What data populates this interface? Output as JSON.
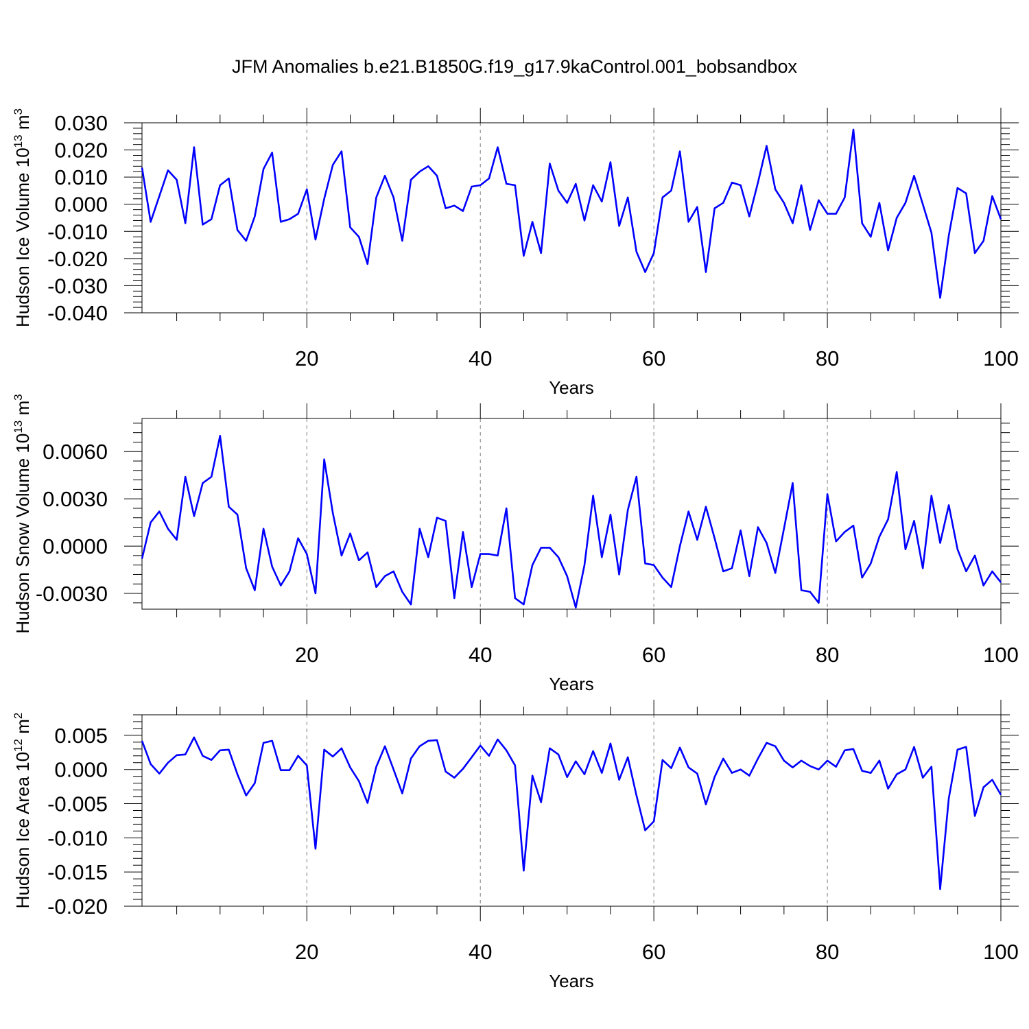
{
  "title": "JFM Anomalies b.e21.B1850G.f19_g17.9kaControl.001_bobsandbox",
  "colors": {
    "line": "#0000ff",
    "axis": "#000000",
    "grid": "#808080"
  },
  "chart_data": [
    {
      "type": "line",
      "ylabel_main": "Hudson Ice Volume 10",
      "ylabel_exp": "13",
      "ylabel_unit": " m",
      "ylabel_unit_exp": "3",
      "xlabel": "Years",
      "xlim": [
        1,
        100
      ],
      "ylim": [
        -0.04,
        0.03
      ],
      "yticks": [
        -0.04,
        -0.03,
        -0.02,
        -0.01,
        0.0,
        0.01,
        0.02,
        0.03
      ],
      "ytick_labels": [
        "-0.040",
        "-0.030",
        "-0.020",
        "-0.010",
        "0.000",
        "0.010",
        "0.020",
        "0.030"
      ],
      "xticks": [
        20,
        40,
        60,
        80,
        100
      ],
      "xtick_labels": [
        "20",
        "40",
        "60",
        "80",
        "100"
      ],
      "grid": "vertical dashed",
      "series": [
        {
          "values": [
            0.0135,
            -0.0065,
            0.003,
            0.0125,
            0.009,
            -0.007,
            0.021,
            -0.0075,
            -0.0055,
            0.007,
            0.0095,
            -0.0095,
            -0.0135,
            -0.0045,
            0.013,
            0.019,
            -0.0065,
            -0.0055,
            -0.0035,
            0.0055,
            -0.013,
            0.002,
            0.0145,
            0.0195,
            -0.0085,
            -0.012,
            -0.022,
            0.0025,
            0.0105,
            0.0025,
            -0.0135,
            0.009,
            0.012,
            0.014,
            0.0105,
            -0.0015,
            -0.0005,
            -0.0025,
            0.0065,
            0.007,
            0.0095,
            0.021,
            0.0075,
            0.007,
            -0.019,
            -0.0065,
            -0.018,
            0.015,
            0.005,
            0.0005,
            0.0075,
            -0.006,
            0.007,
            0.001,
            0.0155,
            -0.008,
            0.0025,
            -0.0175,
            -0.025,
            -0.018,
            0.0025,
            0.005,
            0.0195,
            -0.0065,
            -0.001,
            -0.025,
            -0.0015,
            0.0005,
            0.008,
            0.007,
            -0.0045,
            0.008,
            0.0215,
            0.0055,
            0.0005,
            -0.007,
            0.007,
            -0.0095,
            0.0015,
            -0.0035,
            -0.0035,
            0.0025,
            0.0275,
            -0.007,
            -0.012,
            0.0005,
            -0.017,
            -0.005,
            0.0005,
            0.0105,
            0.0,
            -0.0105,
            -0.0345,
            -0.0115,
            0.006,
            0.004,
            -0.018,
            -0.0135,
            0.003,
            -0.0055
          ]
        }
      ]
    },
    {
      "type": "line",
      "ylabel_main": "Hudson Snow Volume 10",
      "ylabel_exp": "13",
      "ylabel_unit": " m",
      "ylabel_unit_exp": "3",
      "xlabel": "Years",
      "xlim": [
        1,
        100
      ],
      "ylim": [
        -0.004,
        0.0081
      ],
      "yticks": [
        -0.003,
        0.0,
        0.003,
        0.006
      ],
      "ytick_labels": [
        "-0.0030",
        "0.0000",
        "0.0030",
        "0.0060"
      ],
      "xticks": [
        20,
        40,
        60,
        80,
        100
      ],
      "xtick_labels": [
        "20",
        "40",
        "60",
        "80",
        "100"
      ],
      "grid": "vertical dashed",
      "series": [
        {
          "values": [
            -0.0008,
            0.0015,
            0.0022,
            0.0011,
            0.0004,
            0.0044,
            0.0019,
            0.004,
            0.0044,
            0.007,
            0.0025,
            0.002,
            -0.0014,
            -0.0028,
            0.0011,
            -0.0013,
            -0.0025,
            -0.0016,
            0.0005,
            -0.0005,
            -0.003,
            0.0055,
            0.0021,
            -0.0006,
            0.0008,
            -0.0009,
            -0.0004,
            -0.0026,
            -0.0019,
            -0.0016,
            -0.0029,
            -0.0037,
            0.0011,
            -0.0007,
            0.0018,
            0.0016,
            -0.0033,
            0.0009,
            -0.0026,
            -0.0005,
            -0.0005,
            -0.0006,
            0.0024,
            -0.0033,
            -0.0037,
            -0.0012,
            -0.0001,
            -0.0001,
            -0.0007,
            -0.0019,
            -0.0039,
            -0.0012,
            0.0032,
            -0.0007,
            0.002,
            -0.0018,
            0.0023,
            0.0044,
            -0.0011,
            -0.0012,
            -0.002,
            -0.0026,
            0.0,
            0.0022,
            0.0004,
            0.0025,
            0.0005,
            -0.0016,
            -0.0014,
            0.001,
            -0.0019,
            0.0012,
            0.0002,
            -0.0017,
            0.0011,
            0.004,
            -0.0028,
            -0.0029,
            -0.0036,
            0.0033,
            0.0003,
            0.0009,
            0.0013,
            -0.002,
            -0.0011,
            0.0006,
            0.0017,
            0.0047,
            -0.0002,
            0.0016,
            -0.0014,
            0.0032,
            0.0002,
            0.0026,
            -0.0002,
            -0.0016,
            -0.0006,
            -0.0025,
            -0.0016,
            -0.0023
          ]
        }
      ]
    },
    {
      "type": "line",
      "ylabel_main": "Hudson Ice Area 10",
      "ylabel_exp": "12",
      "ylabel_unit": " m",
      "ylabel_unit_exp": "2",
      "xlabel": "Years",
      "xlim": [
        1,
        100
      ],
      "ylim": [
        -0.02,
        0.008
      ],
      "yticks": [
        -0.02,
        -0.015,
        -0.01,
        -0.005,
        0.0,
        0.005
      ],
      "ytick_labels": [
        "-0.020",
        "-0.015",
        "-0.010",
        "-0.005",
        "0.000",
        "0.005"
      ],
      "xticks": [
        20,
        40,
        60,
        80,
        100
      ],
      "xtick_labels": [
        "20",
        "40",
        "60",
        "80",
        "100"
      ],
      "grid": "vertical dashed",
      "series": [
        {
          "values": [
            0.0042,
            0.0008,
            -0.0006,
            0.001,
            0.0021,
            0.0022,
            0.0047,
            0.002,
            0.0014,
            0.0028,
            0.0029,
            -0.0007,
            -0.0038,
            -0.002,
            0.0039,
            0.0042,
            -0.0001,
            -0.0001,
            0.002,
            0.0006,
            -0.0116,
            0.0029,
            0.0019,
            0.0031,
            0.0003,
            -0.0017,
            -0.0049,
            0.0004,
            0.0034,
            0.0,
            -0.0035,
            0.0016,
            0.0034,
            0.0042,
            0.0043,
            -0.0003,
            -0.0012,
            0.0001,
            0.0018,
            0.0035,
            0.002,
            0.0044,
            0.0028,
            0.0006,
            -0.0148,
            -0.0009,
            -0.0048,
            0.0031,
            0.0022,
            -0.0011,
            0.0012,
            -0.0007,
            0.0027,
            -0.0005,
            0.0038,
            -0.0015,
            0.0018,
            -0.0038,
            -0.0089,
            -0.0076,
            0.0014,
            0.0002,
            0.0032,
            0.0003,
            -0.0006,
            -0.0051,
            -0.0011,
            0.0016,
            -0.0005,
            0.0,
            -0.0009,
            0.0016,
            0.0039,
            0.0034,
            0.0013,
            0.0003,
            0.0013,
            0.0005,
            0.0,
            0.0013,
            0.0004,
            0.0028,
            0.003,
            -0.0002,
            -0.0005,
            0.0013,
            -0.0028,
            -0.0007,
            0.0,
            0.0033,
            -0.0012,
            0.0004,
            -0.0175,
            -0.0042,
            0.0029,
            0.0033,
            -0.0068,
            -0.0026,
            -0.0015,
            -0.0037
          ]
        }
      ]
    }
  ]
}
